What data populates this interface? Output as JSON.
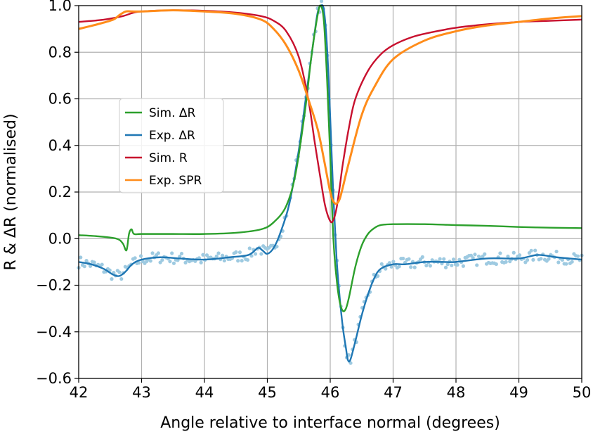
{
  "chart_data": {
    "type": "line",
    "title": "",
    "xlabel": "Angle relative to interface normal (degrees)",
    "ylabel": "R & ΔR (normalised)",
    "xlim": [
      42,
      50
    ],
    "ylim": [
      -0.6,
      1.0
    ],
    "xticks": [
      42,
      43,
      44,
      45,
      46,
      47,
      48,
      49,
      50
    ],
    "yticks": [
      -0.6,
      -0.4,
      -0.2,
      0.0,
      0.2,
      0.4,
      0.6,
      0.8,
      1.0
    ],
    "xtick_labels": [
      "42",
      "43",
      "44",
      "45",
      "46",
      "47",
      "48",
      "49",
      "50"
    ],
    "ytick_labels": [
      "−0.6",
      "−0.4",
      "−0.2",
      "0.0",
      "0.2",
      "0.4",
      "0.6",
      "0.8",
      "1.0"
    ],
    "grid": true,
    "legend_position": "center-left",
    "series": [
      {
        "name": "Sim. ΔR",
        "color": "#2ca02c",
        "style": "line",
        "x": [
          42.0,
          42.3,
          42.6,
          42.7,
          42.76,
          42.8,
          42.84,
          42.88,
          43.0,
          43.5,
          44.0,
          44.5,
          44.9,
          45.1,
          45.3,
          45.45,
          45.6,
          45.7,
          45.8,
          45.85,
          45.9,
          45.95,
          46.0,
          46.05,
          46.1,
          46.15,
          46.2,
          46.25,
          46.3,
          46.4,
          46.5,
          46.6,
          46.7,
          46.8,
          47.0,
          47.5,
          48.0,
          48.5,
          49.0,
          49.5,
          50.0
        ],
        "y": [
          0.015,
          0.01,
          0.0,
          -0.02,
          -0.05,
          0.02,
          0.04,
          0.02,
          0.02,
          0.02,
          0.02,
          0.025,
          0.04,
          0.07,
          0.14,
          0.28,
          0.55,
          0.78,
          0.96,
          1.0,
          0.93,
          0.68,
          0.35,
          0.0,
          -0.17,
          -0.27,
          -0.31,
          -0.3,
          -0.25,
          -0.12,
          -0.03,
          0.02,
          0.045,
          0.058,
          0.062,
          0.062,
          0.058,
          0.055,
          0.05,
          0.047,
          0.045
        ]
      },
      {
        "name": "Exp. ΔR",
        "color": "#1f77b4",
        "style": "line",
        "x": [
          42.0,
          42.2,
          42.4,
          42.55,
          42.65,
          42.75,
          42.85,
          43.0,
          43.3,
          43.6,
          44.0,
          44.4,
          44.7,
          44.85,
          44.92,
          45.0,
          45.1,
          45.2,
          45.35,
          45.5,
          45.6,
          45.7,
          45.75,
          45.8,
          45.85,
          45.9,
          45.95,
          46.0,
          46.05,
          46.1,
          46.15,
          46.2,
          46.25,
          46.28,
          46.32,
          46.4,
          46.5,
          46.6,
          46.7,
          46.8,
          47.0,
          47.2,
          47.5,
          47.8,
          48.0,
          48.5,
          49.0,
          49.3,
          49.6,
          50.0
        ],
        "y": [
          -0.1,
          -0.11,
          -0.13,
          -0.155,
          -0.16,
          -0.14,
          -0.11,
          -0.09,
          -0.08,
          -0.085,
          -0.09,
          -0.08,
          -0.07,
          -0.04,
          -0.05,
          -0.065,
          -0.04,
          0.02,
          0.15,
          0.38,
          0.58,
          0.78,
          0.88,
          0.97,
          1.0,
          0.98,
          0.82,
          0.52,
          0.18,
          -0.08,
          -0.25,
          -0.38,
          -0.47,
          -0.52,
          -0.52,
          -0.44,
          -0.33,
          -0.24,
          -0.17,
          -0.13,
          -0.11,
          -0.11,
          -0.1,
          -0.1,
          -0.1,
          -0.085,
          -0.085,
          -0.07,
          -0.08,
          -0.09
        ]
      },
      {
        "name": "Sim. R",
        "color": "#c8102e",
        "style": "line",
        "x": [
          42.0,
          42.4,
          42.7,
          42.85,
          43.0,
          43.5,
          44.0,
          44.5,
          44.9,
          45.1,
          45.3,
          45.5,
          45.65,
          45.75,
          45.85,
          45.92,
          46.0,
          46.05,
          46.1,
          46.15,
          46.2,
          46.3,
          46.4,
          46.6,
          46.8,
          47.0,
          47.3,
          47.6,
          48.0,
          48.5,
          49.0,
          49.5,
          50.0
        ],
        "y": [
          0.93,
          0.94,
          0.955,
          0.968,
          0.975,
          0.98,
          0.978,
          0.97,
          0.955,
          0.935,
          0.89,
          0.78,
          0.6,
          0.42,
          0.25,
          0.14,
          0.075,
          0.08,
          0.13,
          0.22,
          0.32,
          0.48,
          0.6,
          0.72,
          0.79,
          0.83,
          0.865,
          0.885,
          0.905,
          0.92,
          0.93,
          0.935,
          0.94
        ]
      },
      {
        "name": "Exp. SPR",
        "color": "#ff8c1a",
        "style": "line",
        "x": [
          42.0,
          42.3,
          42.55,
          42.65,
          42.75,
          42.85,
          43.0,
          43.5,
          44.0,
          44.5,
          44.9,
          45.1,
          45.3,
          45.5,
          45.65,
          45.8,
          45.9,
          46.0,
          46.05,
          46.1,
          46.15,
          46.2,
          46.3,
          46.5,
          46.7,
          47.0,
          47.5,
          48.0,
          48.5,
          49.0,
          49.5,
          50.0
        ],
        "y": [
          0.9,
          0.92,
          0.94,
          0.96,
          0.975,
          0.975,
          0.975,
          0.98,
          0.975,
          0.965,
          0.94,
          0.9,
          0.83,
          0.72,
          0.6,
          0.47,
          0.34,
          0.2,
          0.16,
          0.15,
          0.17,
          0.22,
          0.33,
          0.53,
          0.65,
          0.77,
          0.85,
          0.89,
          0.915,
          0.93,
          0.945,
          0.955
        ]
      }
    ],
    "scatter_overlay": {
      "color": "#9ecae1",
      "follows_series": "Exp. ΔR",
      "count": 260,
      "spread": 0.025
    }
  }
}
